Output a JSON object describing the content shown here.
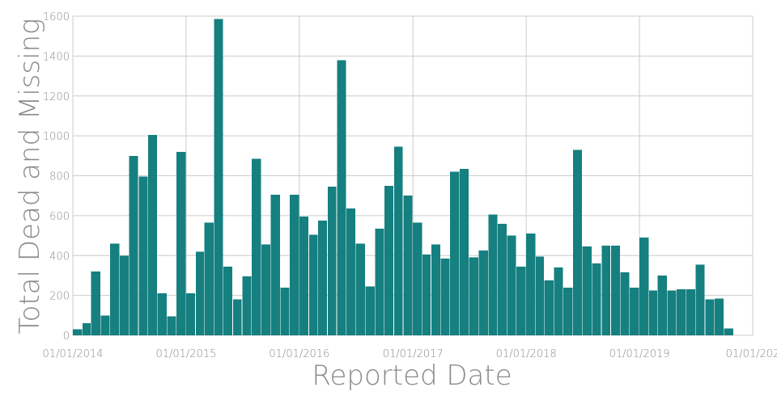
{
  "chart_data": {
    "type": "bar",
    "title": "",
    "xlabel": "Reported Date",
    "ylabel": "Total Dead and Missing",
    "ylim": [
      0,
      1600
    ],
    "y_ticks": [
      0,
      200,
      400,
      600,
      800,
      1000,
      1200,
      1400,
      1600
    ],
    "x_tick_labels": [
      "01/01/2014",
      "01/01/2015",
      "01/01/2016",
      "01/01/2017",
      "01/01/2018",
      "01/01/2019",
      "01/01/202"
    ],
    "x_range": [
      "2014-01-01",
      "2020-01-01"
    ],
    "grid": true,
    "bar_color": "#167f7f",
    "bin": "monthly",
    "categories": [
      "2014-01",
      "2014-02",
      "2014-03",
      "2014-04",
      "2014-05",
      "2014-06",
      "2014-07",
      "2014-08",
      "2014-09",
      "2014-10",
      "2014-11",
      "2014-12",
      "2015-01",
      "2015-02",
      "2015-03",
      "2015-04",
      "2015-05",
      "2015-06",
      "2015-07",
      "2015-08",
      "2015-09",
      "2015-10",
      "2015-11",
      "2015-12",
      "2016-01",
      "2016-02",
      "2016-03",
      "2016-04",
      "2016-05",
      "2016-06",
      "2016-07",
      "2016-08",
      "2016-09",
      "2016-10",
      "2016-11",
      "2016-12",
      "2017-01",
      "2017-02",
      "2017-03",
      "2017-04",
      "2017-05",
      "2017-06",
      "2017-07",
      "2017-08",
      "2017-09",
      "2017-10",
      "2017-11",
      "2017-12",
      "2018-01",
      "2018-02",
      "2018-03",
      "2018-04",
      "2018-05",
      "2018-06",
      "2018-07",
      "2018-08",
      "2018-09",
      "2018-10",
      "2018-11",
      "2018-12",
      "2019-01",
      "2019-02",
      "2019-03",
      "2019-04",
      "2019-05",
      "2019-06",
      "2019-07",
      "2019-08",
      "2019-09",
      "2019-10",
      "2019-11",
      "2019-12"
    ],
    "values": [
      30,
      60,
      320,
      100,
      460,
      400,
      900,
      795,
      1005,
      210,
      95,
      920,
      210,
      420,
      565,
      1585,
      345,
      180,
      295,
      885,
      455,
      705,
      240,
      705,
      595,
      505,
      575,
      745,
      1380,
      635,
      460,
      245,
      535,
      750,
      945,
      700,
      565,
      405,
      455,
      385,
      820,
      835,
      390,
      425,
      605,
      560,
      500,
      345,
      510,
      395,
      275,
      340,
      240,
      930,
      445,
      360,
      450,
      450,
      315,
      240,
      490,
      225,
      300,
      225,
      230,
      230,
      355,
      180,
      185,
      35,
      0,
      0
    ]
  }
}
